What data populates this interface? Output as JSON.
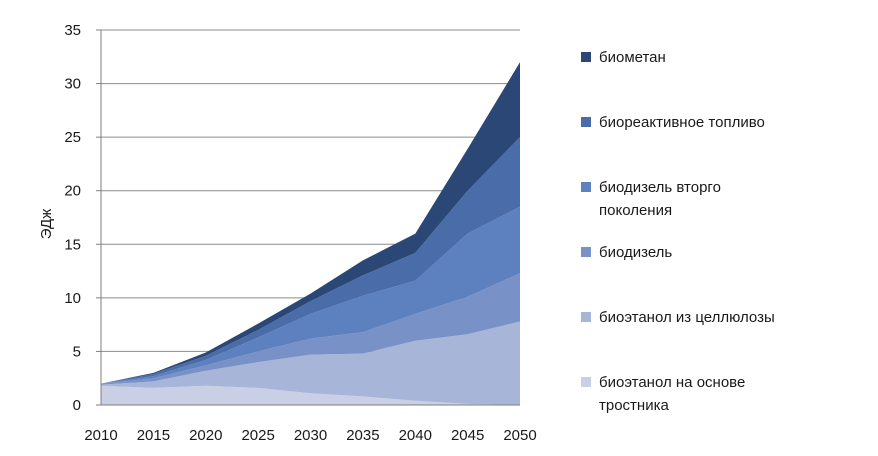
{
  "chart_data": {
    "type": "area",
    "stacked": true,
    "x": [
      2010,
      2015,
      2020,
      2025,
      2030,
      2035,
      2040,
      2045,
      2050
    ],
    "xticks": [
      "2010",
      "2015",
      "2020",
      "2025",
      "2030",
      "2035",
      "2040",
      "2045",
      "2050"
    ],
    "ylabel": "ЭДж",
    "ylim": [
      0,
      35
    ],
    "yticks": [
      "0",
      "5",
      "10",
      "15",
      "20",
      "25",
      "30",
      "35"
    ],
    "grid": "horizontal",
    "legend_position": "right",
    "series": [
      {
        "name": "биоэтанол на основе тростника",
        "values": [
          1.8,
          1.6,
          1.8,
          1.6,
          1.1,
          0.8,
          0.4,
          0.1,
          0.0
        ],
        "color": "#c9cfe4"
      },
      {
        "name": "биоэтанол из целлюлозы",
        "values": [
          0.1,
          0.6,
          1.4,
          2.4,
          3.6,
          4.0,
          5.6,
          6.5,
          7.8
        ],
        "color": "#a6b5d8"
      },
      {
        "name": "биодизель",
        "values": [
          0.1,
          0.3,
          0.5,
          1.0,
          1.5,
          2.0,
          2.5,
          3.5,
          4.5
        ],
        "color": "#7892c7"
      },
      {
        "name": "биодизель вторго поколения",
        "values": [
          0.0,
          0.2,
          0.5,
          1.3,
          2.3,
          3.4,
          3.1,
          5.9,
          6.2
        ],
        "color": "#5d80bf"
      },
      {
        "name": "биореактивное топливо",
        "values": [
          0.0,
          0.2,
          0.4,
          0.7,
          1.2,
          1.9,
          2.6,
          4.0,
          6.5
        ],
        "color": "#4a6da9"
      },
      {
        "name": "биометан",
        "values": [
          0.0,
          0.1,
          0.3,
          0.6,
          0.7,
          1.4,
          1.8,
          3.9,
          7.0
        ],
        "color": "#2b4775"
      }
    ]
  }
}
